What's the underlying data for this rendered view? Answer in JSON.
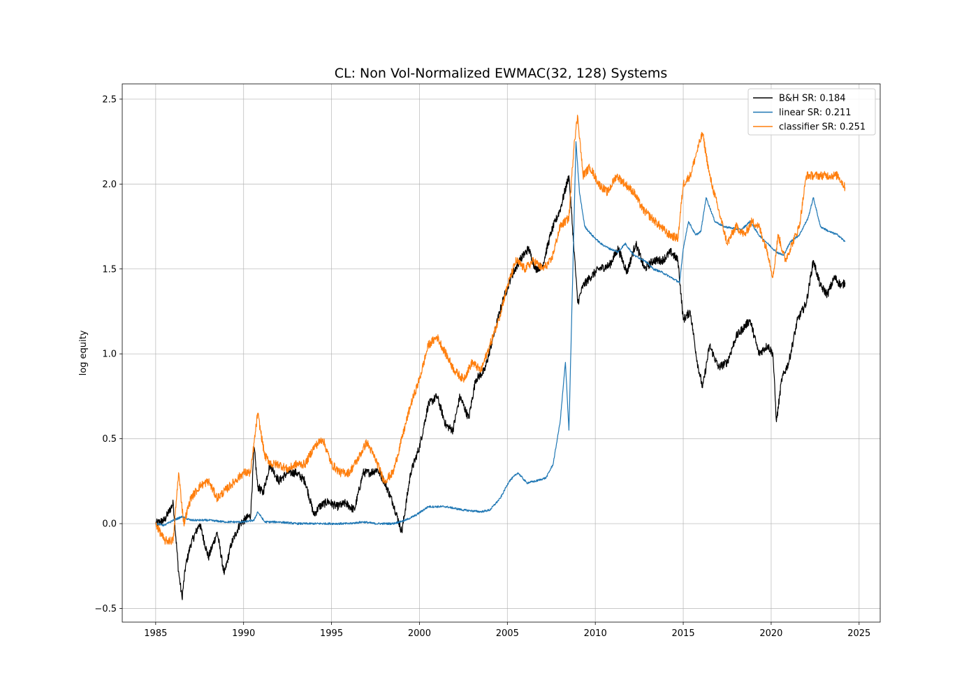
{
  "chart_data": {
    "type": "line",
    "title": "CL: Non Vol-Normalized EWMAC(32, 128) Systems",
    "xlabel": "",
    "ylabel": "log equity",
    "xlim": [
      1983.1,
      2026.2
    ],
    "ylim": [
      -0.58,
      2.59
    ],
    "x_ticks": [
      1985,
      1990,
      1995,
      2000,
      2005,
      2010,
      2015,
      2020,
      2025
    ],
    "y_ticks": [
      -0.5,
      0.0,
      0.5,
      1.0,
      1.5,
      2.0,
      2.5
    ],
    "y_tick_labels": [
      "−0.5",
      "0.0",
      "0.5",
      "1.0",
      "1.5",
      "2.0",
      "2.5"
    ],
    "grid": true,
    "legend_position": "top-right",
    "series": [
      {
        "name": "B&H SR: 0.184",
        "color": "#000000",
        "x": [
          1985.0,
          1985.5,
          1986.0,
          1986.3,
          1986.5,
          1986.7,
          1987.0,
          1987.5,
          1988.0,
          1988.5,
          1988.9,
          1989.3,
          1989.8,
          1990.4,
          1990.6,
          1990.8,
          1991.1,
          1991.5,
          1992.0,
          1992.5,
          1993.0,
          1993.5,
          1994.0,
          1994.3,
          1994.8,
          1995.3,
          1995.8,
          1996.3,
          1996.8,
          1997.2,
          1997.6,
          1998.0,
          1998.5,
          1999.0,
          1999.5,
          2000.0,
          2000.5,
          2001.0,
          2001.5,
          2001.9,
          2002.3,
          2002.8,
          2003.2,
          2003.7,
          2004.2,
          2004.7,
          2005.2,
          2005.7,
          2006.2,
          2006.6,
          2007.0,
          2007.5,
          2008.0,
          2008.5,
          2008.8,
          2009.0,
          2009.3,
          2009.7,
          2010.2,
          2010.8,
          2011.3,
          2011.8,
          2012.3,
          2012.8,
          2013.3,
          2013.8,
          2014.3,
          2014.7,
          2015.0,
          2015.4,
          2015.8,
          2016.1,
          2016.5,
          2017.0,
          2017.5,
          2018.0,
          2018.4,
          2018.8,
          2019.3,
          2019.8,
          2020.1,
          2020.3,
          2020.6,
          2021.0,
          2021.5,
          2022.0,
          2022.4,
          2022.8,
          2023.2,
          2023.6,
          2024.0,
          2024.2
        ],
        "values": [
          0.0,
          0.02,
          0.12,
          -0.28,
          -0.44,
          -0.25,
          -0.12,
          0.0,
          -0.2,
          -0.05,
          -0.3,
          -0.12,
          0.0,
          0.05,
          0.45,
          0.22,
          0.18,
          0.35,
          0.25,
          0.3,
          0.3,
          0.25,
          0.05,
          0.1,
          0.13,
          0.1,
          0.12,
          0.08,
          0.3,
          0.3,
          0.32,
          0.25,
          0.12,
          -0.05,
          0.3,
          0.45,
          0.7,
          0.75,
          0.58,
          0.55,
          0.75,
          0.62,
          0.85,
          0.9,
          1.1,
          1.3,
          1.45,
          1.55,
          1.62,
          1.5,
          1.52,
          1.72,
          1.85,
          2.05,
          1.6,
          1.3,
          1.4,
          1.45,
          1.5,
          1.52,
          1.62,
          1.48,
          1.65,
          1.5,
          1.55,
          1.55,
          1.6,
          1.55,
          1.2,
          1.25,
          0.95,
          0.8,
          1.05,
          0.92,
          0.95,
          1.1,
          1.15,
          1.2,
          1.0,
          1.05,
          1.0,
          0.6,
          0.85,
          0.95,
          1.2,
          1.3,
          1.55,
          1.4,
          1.35,
          1.45,
          1.4,
          1.42
        ]
      },
      {
        "name": "linear SR: 0.211",
        "color": "#1f77b4",
        "x": [
          1985.0,
          1985.5,
          1986.0,
          1986.5,
          1987.0,
          1988.0,
          1989.0,
          1990.0,
          1990.6,
          1990.8,
          1991.2,
          1992.0,
          1993.0,
          1994.0,
          1995.0,
          1996.0,
          1996.8,
          1997.5,
          1998.5,
          1999.2,
          1999.8,
          2000.5,
          2001.5,
          2002.5,
          2003.5,
          2004.0,
          2004.6,
          2005.1,
          2005.6,
          2006.1,
          2006.6,
          2007.2,
          2007.6,
          2008.0,
          2008.3,
          2008.5,
          2008.7,
          2008.9,
          2009.1,
          2009.4,
          2009.8,
          2010.3,
          2010.8,
          2011.3,
          2011.7,
          2012.2,
          2012.8,
          2013.3,
          2013.8,
          2014.3,
          2014.8,
          2015.0,
          2015.3,
          2015.7,
          2016.0,
          2016.3,
          2016.8,
          2017.3,
          2017.8,
          2018.3,
          2018.8,
          2019.3,
          2019.8,
          2020.3,
          2020.7,
          2021.1,
          2021.6,
          2022.1,
          2022.4,
          2022.8,
          2023.3,
          2023.8,
          2024.2
        ],
        "values": [
          0.0,
          -0.01,
          0.02,
          0.04,
          0.02,
          0.02,
          0.01,
          0.01,
          0.02,
          0.07,
          0.01,
          0.01,
          0.0,
          0.0,
          0.0,
          0.0,
          0.01,
          0.0,
          0.0,
          0.02,
          0.05,
          0.1,
          0.1,
          0.08,
          0.07,
          0.08,
          0.15,
          0.25,
          0.3,
          0.24,
          0.25,
          0.27,
          0.35,
          0.6,
          0.95,
          0.55,
          1.4,
          2.25,
          1.95,
          1.75,
          1.7,
          1.65,
          1.62,
          1.6,
          1.65,
          1.58,
          1.55,
          1.5,
          1.48,
          1.45,
          1.42,
          1.62,
          1.78,
          1.7,
          1.72,
          1.92,
          1.78,
          1.75,
          1.74,
          1.73,
          1.78,
          1.7,
          1.65,
          1.6,
          1.58,
          1.66,
          1.7,
          1.8,
          1.92,
          1.75,
          1.72,
          1.7,
          1.66
        ]
      },
      {
        "name": "classifier SR: 0.251",
        "color": "#ff7f0e",
        "x": [
          1985.0,
          1985.5,
          1986.0,
          1986.3,
          1986.6,
          1987.0,
          1987.5,
          1988.0,
          1988.5,
          1989.0,
          1989.5,
          1990.0,
          1990.4,
          1990.8,
          1991.2,
          1991.6,
          1992.0,
          1992.5,
          1993.0,
          1993.5,
          1994.0,
          1994.5,
          1995.0,
          1995.5,
          1996.0,
          1996.5,
          1997.0,
          1997.5,
          1998.0,
          1998.5,
          1999.0,
          1999.5,
          2000.0,
          2000.5,
          2001.0,
          2001.5,
          2002.0,
          2002.5,
          2003.0,
          2003.5,
          2004.0,
          2004.5,
          2005.0,
          2005.5,
          2006.0,
          2006.5,
          2007.0,
          2007.5,
          2008.0,
          2008.5,
          2008.8,
          2009.0,
          2009.3,
          2009.7,
          2010.2,
          2010.7,
          2011.2,
          2011.7,
          2012.2,
          2012.7,
          2013.2,
          2013.7,
          2014.2,
          2014.7,
          2015.0,
          2015.4,
          2015.8,
          2016.1,
          2016.5,
          2017.0,
          2017.5,
          2018.0,
          2018.5,
          2018.9,
          2019.3,
          2019.8,
          2020.1,
          2020.4,
          2020.8,
          2021.2,
          2021.6,
          2022.0,
          2022.4,
          2022.8,
          2023.3,
          2023.8,
          2024.2
        ],
        "values": [
          0.0,
          -0.1,
          -0.1,
          0.3,
          0.0,
          0.15,
          0.22,
          0.25,
          0.15,
          0.2,
          0.25,
          0.3,
          0.3,
          0.65,
          0.4,
          0.35,
          0.35,
          0.32,
          0.35,
          0.35,
          0.45,
          0.5,
          0.35,
          0.3,
          0.3,
          0.38,
          0.48,
          0.38,
          0.25,
          0.3,
          0.5,
          0.7,
          0.85,
          1.05,
          1.1,
          1.0,
          0.9,
          0.85,
          0.95,
          0.9,
          1.05,
          1.2,
          1.4,
          1.55,
          1.5,
          1.55,
          1.5,
          1.55,
          1.75,
          1.8,
          2.25,
          2.4,
          2.05,
          2.1,
          2.0,
          1.95,
          2.05,
          2.0,
          1.95,
          1.85,
          1.8,
          1.75,
          1.7,
          1.68,
          2.0,
          2.05,
          2.2,
          2.3,
          2.05,
          1.85,
          1.65,
          1.75,
          1.7,
          1.78,
          1.75,
          1.6,
          1.45,
          1.7,
          1.55,
          1.65,
          1.75,
          2.05,
          2.05,
          2.05,
          2.05,
          2.05,
          1.98
        ]
      }
    ]
  }
}
